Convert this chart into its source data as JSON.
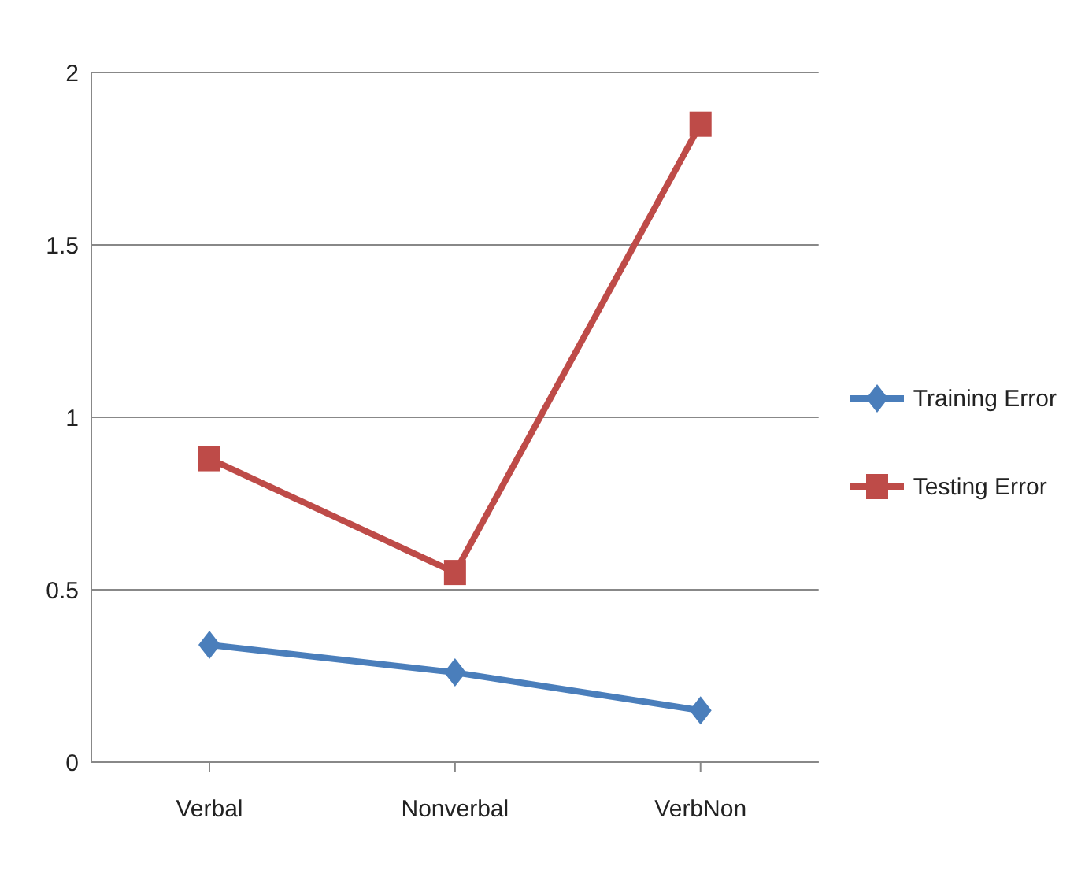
{
  "chart_data": {
    "type": "line",
    "categories": [
      "Verbal",
      "Nonverbal",
      "VerbNon"
    ],
    "series": [
      {
        "name": "Training Error",
        "color": "#4a7ebb",
        "values": [
          0.34,
          0.26,
          0.15
        ],
        "marker": "diamond"
      },
      {
        "name": "Testing Error",
        "color": "#be4b48",
        "values": [
          0.88,
          0.55,
          1.85
        ],
        "marker": "square"
      }
    ],
    "ylim": [
      0,
      2
    ],
    "yticks": [
      0,
      0.5,
      1,
      1.5,
      2
    ],
    "grid": "y",
    "legend": "right",
    "line_style": "solid"
  }
}
